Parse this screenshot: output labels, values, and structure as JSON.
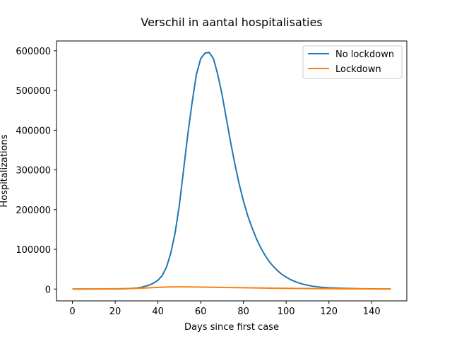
{
  "chart_data": {
    "type": "line",
    "title": "Verschil in aantal hospitalisaties",
    "xlabel": "Days since first case",
    "ylabel": "Hospitalizations",
    "xlim": [
      -7.45,
      156.45
    ],
    "ylim": [
      -29750,
      624750
    ],
    "xticks": [
      0,
      20,
      40,
      60,
      80,
      100,
      120,
      140
    ],
    "yticks": [
      0,
      100000,
      200000,
      300000,
      400000,
      500000,
      600000
    ],
    "legend_position": "top-right",
    "grid": false,
    "series": [
      {
        "name": "No lockdown",
        "color": "#1f77b4",
        "x": [
          0,
          10,
          20,
          25,
          30,
          33,
          36,
          38,
          40,
          42,
          44,
          46,
          48,
          50,
          52,
          54,
          56,
          58,
          60,
          62,
          64,
          66,
          68,
          70,
          72,
          74,
          76,
          78,
          80,
          82,
          84,
          86,
          88,
          90,
          92,
          94,
          96,
          98,
          100,
          102,
          105,
          108,
          112,
          116,
          120,
          125,
          130,
          135,
          140,
          145,
          149
        ],
        "y": [
          0,
          0,
          200,
          800,
          2500,
          5500,
          10000,
          15000,
          22000,
          34000,
          55000,
          90000,
          140000,
          210000,
          300000,
          390000,
          470000,
          540000,
          580000,
          594000,
          596000,
          580000,
          540000,
          490000,
          430000,
          370000,
          315000,
          265000,
          222000,
          185000,
          155000,
          128000,
          105000,
          86000,
          70000,
          57000,
          46000,
          37000,
          30000,
          24000,
          17000,
          12000,
          7500,
          4800,
          3200,
          2000,
          1300,
          800,
          500,
          300,
          200
        ]
      },
      {
        "name": "Lockdown",
        "color": "#ff7f0e",
        "x": [
          0,
          10,
          20,
          30,
          35,
          40,
          45,
          50,
          55,
          60,
          65,
          70,
          80,
          90,
          100,
          110,
          120,
          130,
          140,
          149
        ],
        "y": [
          0,
          200,
          700,
          1800,
          3000,
          4300,
          5200,
          5500,
          5400,
          5000,
          4600,
          4100,
          3300,
          2500,
          1800,
          1300,
          900,
          600,
          350,
          200
        ]
      }
    ]
  }
}
